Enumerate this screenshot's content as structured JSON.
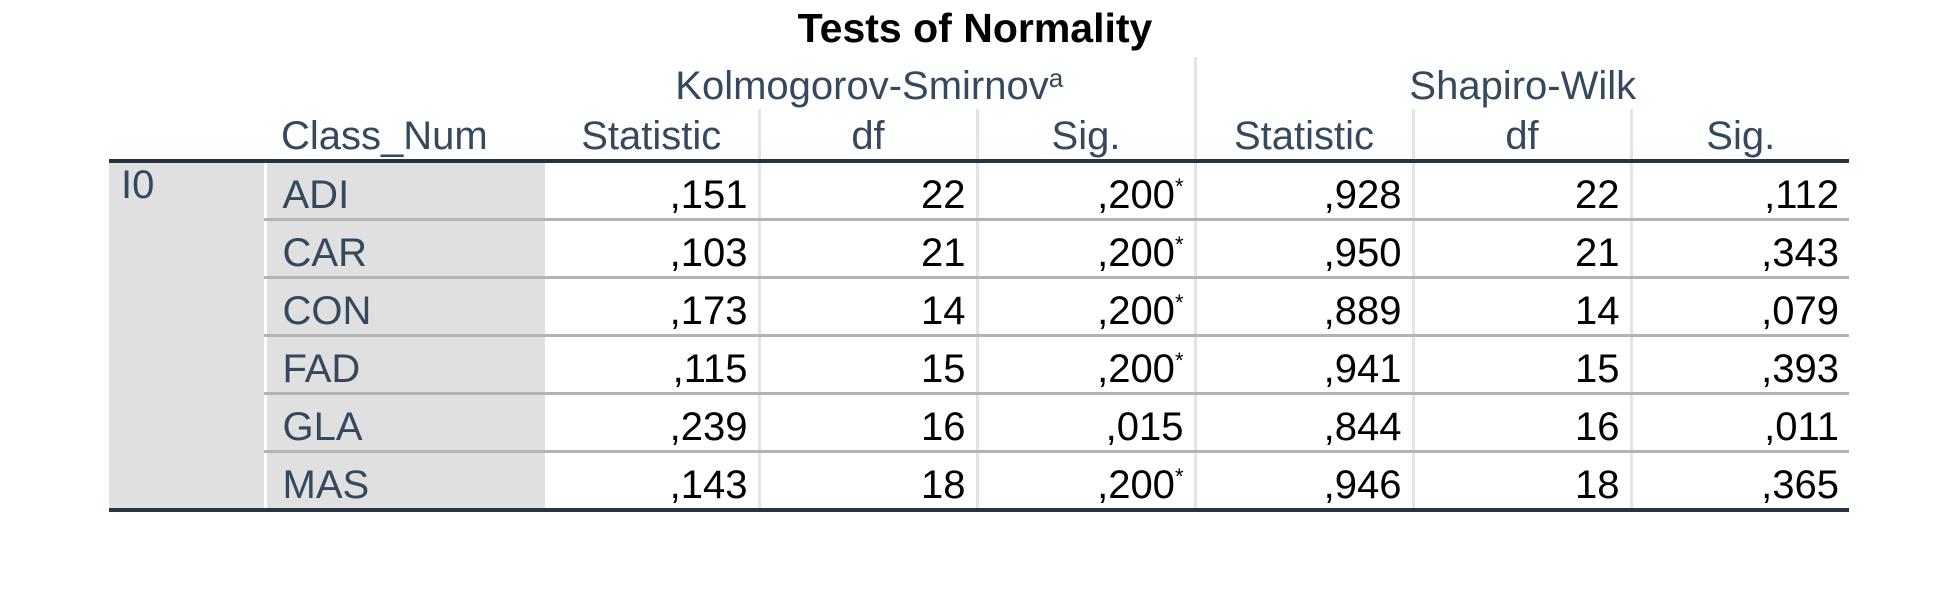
{
  "title": "Tests of Normality",
  "groups": {
    "ks": "Kolmogorov-Smirnov",
    "ks_footnote": "a",
    "sw": "Shapiro-Wilk"
  },
  "columns": {
    "row_header": "Class_Num",
    "ks_statistic": "Statistic",
    "ks_df": "df",
    "ks_sig": "Sig.",
    "sw_statistic": "Statistic",
    "sw_df": "df",
    "sw_sig": "Sig."
  },
  "group_label": "I0",
  "rows": [
    {
      "cls": "ADI",
      "ks_stat": ",151",
      "ks_df": "22",
      "ks_sig": ",200",
      "ks_sig_mark": "*",
      "sw_stat": ",928",
      "sw_df": "22",
      "sw_sig": ",112"
    },
    {
      "cls": "CAR",
      "ks_stat": ",103",
      "ks_df": "21",
      "ks_sig": ",200",
      "ks_sig_mark": "*",
      "sw_stat": ",950",
      "sw_df": "21",
      "sw_sig": ",343"
    },
    {
      "cls": "CON",
      "ks_stat": ",173",
      "ks_df": "14",
      "ks_sig": ",200",
      "ks_sig_mark": "*",
      "sw_stat": ",889",
      "sw_df": "14",
      "sw_sig": ",079"
    },
    {
      "cls": "FAD",
      "ks_stat": ",115",
      "ks_df": "15",
      "ks_sig": ",200",
      "ks_sig_mark": "*",
      "sw_stat": ",941",
      "sw_df": "15",
      "sw_sig": ",393"
    },
    {
      "cls": "GLA",
      "ks_stat": ",239",
      "ks_df": "16",
      "ks_sig": ",015",
      "ks_sig_mark": "",
      "sw_stat": ",844",
      "sw_df": "16",
      "sw_sig": ",011"
    },
    {
      "cls": "MAS",
      "ks_stat": ",143",
      "ks_df": "18",
      "ks_sig": ",200",
      "ks_sig_mark": "*",
      "sw_stat": ",946",
      "sw_df": "18",
      "sw_sig": ",365"
    }
  ]
}
